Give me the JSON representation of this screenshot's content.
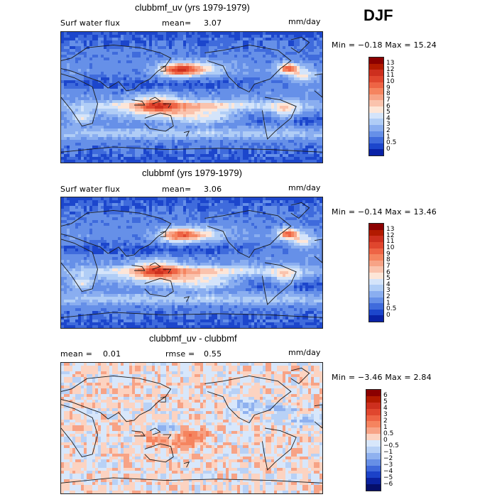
{
  "season": "DJF",
  "panels": [
    {
      "title": "clubbmf_uv (yrs 1979-1979)",
      "variable": "Surf water flux",
      "mean_label": "mean=",
      "mean_value": "3.07",
      "units": "mm/day",
      "minmax": "Min =  −0.18  Max =   15.24",
      "cbar_labels": [
        "13",
        "12",
        "11",
        "10",
        "9",
        "8",
        "7",
        "6",
        "5",
        "4",
        "3",
        "2",
        "1",
        "0.5",
        "0"
      ],
      "cbar_colors": [
        "#8b0000",
        "#b21a00",
        "#cd2f1e",
        "#e0462e",
        "#ee6445",
        "#f5845f",
        "#f7a386",
        "#fac3ad",
        "#fde6d8",
        "#d4e4fa",
        "#b0cdf6",
        "#8aaef0",
        "#6690e8",
        "#3f6bdc",
        "#1c46cc",
        "#0922a6"
      ],
      "field": "model"
    },
    {
      "title": "clubbmf (yrs 1979-1979)",
      "variable": "Surf water flux",
      "mean_label": "mean=",
      "mean_value": "3.06",
      "units": "mm/day",
      "minmax": "Min =  −0.14  Max =   13.46",
      "cbar_labels": [
        "13",
        "12",
        "11",
        "10",
        "9",
        "8",
        "7",
        "6",
        "5",
        "4",
        "3",
        "2",
        "1",
        "0.5",
        "0"
      ],
      "cbar_colors": [
        "#8b0000",
        "#b21a00",
        "#cd2f1e",
        "#e0462e",
        "#ee6445",
        "#f5845f",
        "#f7a386",
        "#fac3ad",
        "#fde6d8",
        "#d4e4fa",
        "#b0cdf6",
        "#8aaef0",
        "#6690e8",
        "#3f6bdc",
        "#1c46cc",
        "#0922a6"
      ],
      "field": "model"
    },
    {
      "title": "clubbmf_uv - clubbmf",
      "mean_label": "mean =",
      "mean_value": "0.01",
      "rmse_label": "rmse =",
      "rmse_value": "0.55",
      "units": "mm/day",
      "minmax": "Min =  −3.46  Max =    2.84",
      "cbar_labels": [
        "6",
        "5",
        "4",
        "3",
        "2",
        "1",
        "0.5",
        "0",
        "−0.5",
        "−1",
        "−2",
        "−3",
        "−4",
        "−5",
        "−6"
      ],
      "cbar_colors": [
        "#8b0000",
        "#b21a00",
        "#cd2f1e",
        "#e0462e",
        "#ee6445",
        "#f5845f",
        "#f7a386",
        "#fcd3c1",
        "#d8e7fb",
        "#b8d1f6",
        "#8fb1ef",
        "#678fe6",
        "#3f68da",
        "#1c42c8",
        "#0b22a0",
        "#060f6a"
      ],
      "field": "diff"
    }
  ]
}
